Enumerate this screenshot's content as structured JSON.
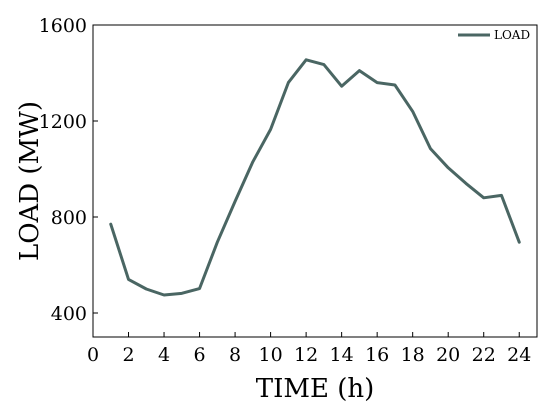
{
  "chart_data": {
    "type": "line",
    "title": "",
    "xlabel": "TIME (h)",
    "ylabel": "LOAD (MW)",
    "xlim": [
      0,
      25
    ],
    "ylim": [
      300,
      1600
    ],
    "x_ticks": [
      0,
      2,
      4,
      6,
      8,
      10,
      12,
      14,
      16,
      18,
      20,
      22,
      24
    ],
    "y_ticks": [
      400,
      800,
      1200,
      1600
    ],
    "grid": false,
    "legend_position": "top-right",
    "series": [
      {
        "name": "LOAD",
        "color": "#4a6663",
        "x": [
          1,
          2,
          3,
          4,
          5,
          6,
          7,
          8,
          9,
          10,
          11,
          12,
          13,
          14,
          15,
          16,
          17,
          18,
          19,
          20,
          21,
          22,
          23,
          24
        ],
        "values": [
          770,
          540,
          500,
          475,
          482,
          502,
          695,
          865,
          1030,
          1165,
          1360,
          1455,
          1435,
          1345,
          1410,
          1360,
          1350,
          1240,
          1085,
          1005,
          940,
          880,
          890,
          695
        ]
      }
    ]
  }
}
